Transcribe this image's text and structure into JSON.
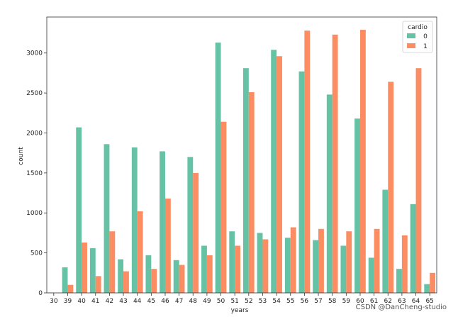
{
  "chart_data": {
    "type": "bar",
    "title": "",
    "xlabel": "years",
    "ylabel": "count",
    "ylim": [
      0,
      3450
    ],
    "yticks": [
      0,
      500,
      1000,
      1500,
      2000,
      2500,
      3000
    ],
    "grid": false,
    "legend_title": "cardio",
    "legend_position": "top-right",
    "categories": [
      "30",
      "39",
      "40",
      "41",
      "42",
      "43",
      "44",
      "45",
      "46",
      "47",
      "48",
      "49",
      "50",
      "51",
      "52",
      "53",
      "54",
      "55",
      "56",
      "57",
      "58",
      "59",
      "60",
      "61",
      "62",
      "63",
      "64",
      "65"
    ],
    "series": [
      {
        "name": "0",
        "color": "#66c2a5",
        "values": [
          4,
          320,
          2070,
          560,
          1860,
          420,
          1820,
          470,
          1770,
          410,
          1700,
          590,
          3130,
          770,
          2810,
          750,
          3040,
          690,
          2770,
          660,
          2480,
          590,
          2180,
          440,
          1290,
          300,
          1110,
          110
        ]
      },
      {
        "name": "1",
        "color": "#fc8d62",
        "values": [
          0,
          100,
          630,
          210,
          770,
          270,
          1020,
          300,
          1180,
          350,
          1500,
          470,
          2140,
          590,
          2510,
          670,
          2960,
          820,
          3280,
          800,
          3230,
          770,
          3290,
          800,
          2640,
          720,
          2810,
          250
        ]
      }
    ]
  },
  "watermark": "CSDN @DanCheng-studio"
}
